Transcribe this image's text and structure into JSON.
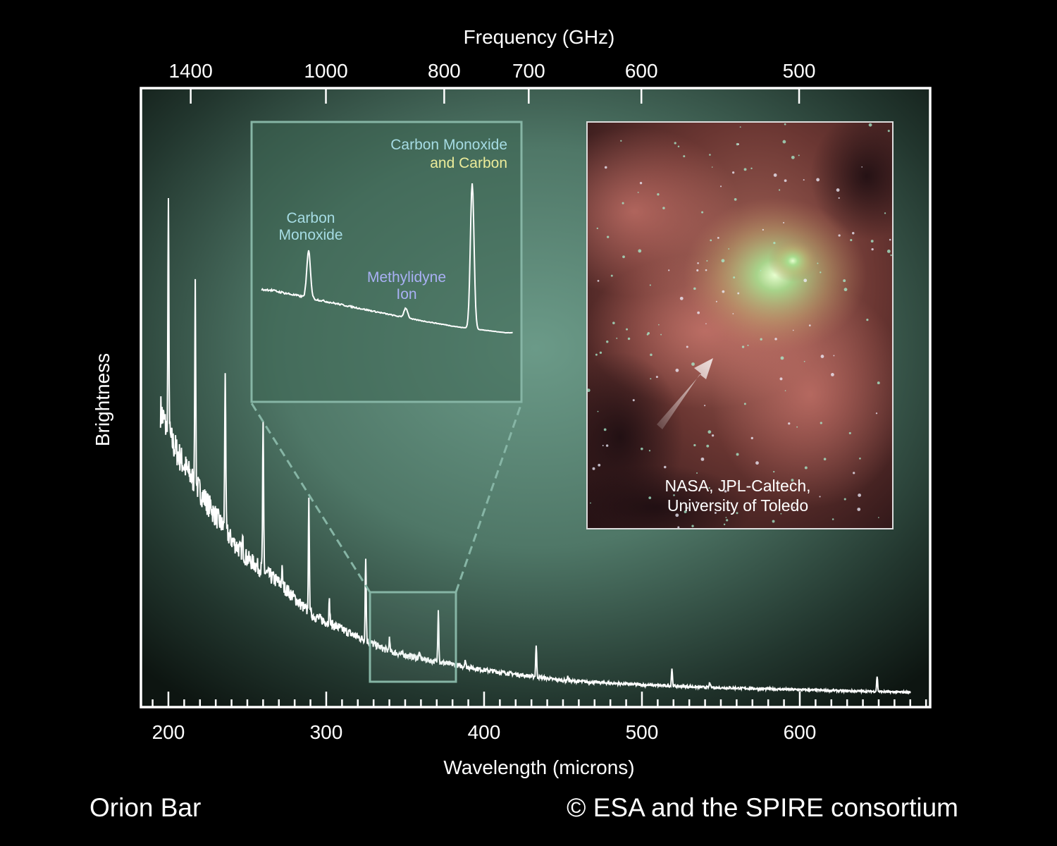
{
  "chart_data": {
    "type": "line",
    "title": "",
    "xlabel": "Wavelength (microns)",
    "ylabel": "Brightness",
    "top_xlabel": "Frequency (GHz)",
    "xlim": [
      182.6,
      682.6
    ],
    "ylim": [
      0,
      100
    ],
    "grid": false,
    "xticks": [
      200,
      300,
      400,
      500,
      600
    ],
    "xminor_step": 10,
    "top_xticks_ghz": [
      1400,
      1000,
      800,
      700,
      600,
      500
    ],
    "series": [
      {
        "name": "Orion Bar spectrum",
        "x_range": [
          195,
          670
        ],
        "continuum": [
          [
            195,
            48
          ],
          [
            200,
            44
          ],
          [
            210,
            39
          ],
          [
            227,
            32
          ],
          [
            240,
            27
          ],
          [
            250,
            24
          ],
          [
            272,
            19.7
          ],
          [
            290,
            15
          ],
          [
            317,
            11.7
          ],
          [
            340,
            9
          ],
          [
            362,
            7.7
          ],
          [
            400,
            6
          ],
          [
            450,
            4.3
          ],
          [
            500,
            3.6
          ],
          [
            540,
            3.2
          ],
          [
            600,
            2.8
          ],
          [
            669,
            2.4
          ]
        ],
        "lines": [
          {
            "x": 200,
            "height": 80
          },
          {
            "x": 217,
            "height": 67
          },
          {
            "x": 227,
            "height": 33
          },
          {
            "x": 236,
            "height": 55
          },
          {
            "x": 247,
            "height": 27
          },
          {
            "x": 260,
            "height": 45
          },
          {
            "x": 272,
            "height": 22
          },
          {
            "x": 289,
            "height": 33
          },
          {
            "x": 302,
            "height": 17
          },
          {
            "x": 325,
            "height": 24.5
          },
          {
            "x": 340,
            "height": 11
          },
          {
            "x": 359,
            "height": 8.8
          },
          {
            "x": 371,
            "height": 16
          },
          {
            "x": 388,
            "height": 7.7
          },
          {
            "x": 433,
            "height": 10
          },
          {
            "x": 453,
            "height": 5
          },
          {
            "x": 519,
            "height": 6.3
          },
          {
            "x": 543,
            "height": 4
          },
          {
            "x": 649,
            "height": 5
          }
        ]
      }
    ],
    "inset": {
      "xlim": [
        327.7,
        382.1
      ],
      "ylim": [
        0,
        100
      ],
      "continuum": [
        [
          330,
          30
        ],
        [
          340,
          24
        ],
        [
          350,
          18
        ],
        [
          360,
          12
        ],
        [
          370,
          7
        ],
        [
          380,
          3.5
        ]
      ],
      "lines": [
        {
          "x": 338.4,
          "height": 54,
          "label": [
            "Carbon",
            "Monoxide"
          ],
          "color": "#a6dce4"
        },
        {
          "x": 358.9,
          "height": 18.7,
          "label": [
            "Methylidyne",
            "Ion"
          ],
          "color": "#a9b0f4"
        },
        {
          "x": 372.9,
          "height": 95.7,
          "label": [
            "Carbon Monoxide",
            "and Carbon"
          ],
          "color": "#a6dce4",
          "color2": "#ecec9a"
        }
      ]
    },
    "colors": {
      "line": "#ffffff",
      "panel_center": "#6b9a88",
      "panel_edge": "#0d1511",
      "inset_border": "#86b5a5"
    }
  },
  "image_credit": [
    "NASA, JPL-Caltech,",
    "University of Toledo"
  ],
  "footer": {
    "left": "Orion Bar",
    "right": "© ESA and the SPIRE consortium"
  }
}
